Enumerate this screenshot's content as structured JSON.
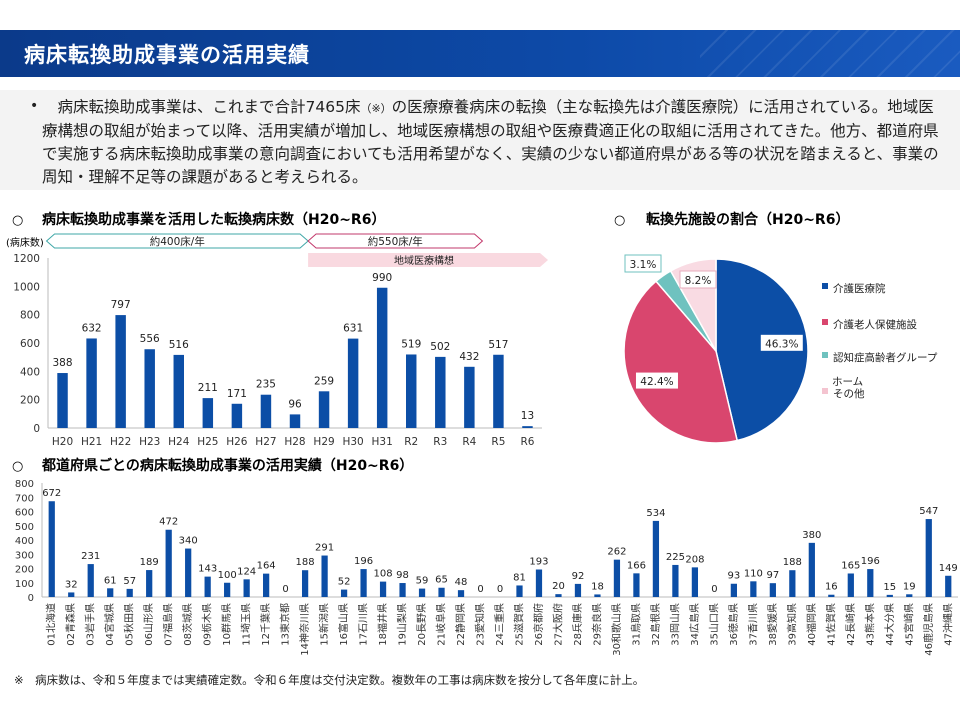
{
  "page_title": "病床転換助成事業の活用実績",
  "summary": {
    "bullet": "•",
    "text_pre": "　病床転換助成事業は、これまで合計7465床",
    "text_note": "（※）",
    "text_post": "の医療療養病床の転換（主な転換先は介護医療院）に活用されている。地域医療構想の取組が始まって以降、活用実績が増加し、地域医療構想の取組や医療費適正化の取組に活用されてきた。他方、都道府県で実施する病床転換助成事業の意向調査においても活用希望がなく、実績の少ない都道府県がある等の状況を踏まえると、事業の周知・理解不足等の課題があると考えられる。"
  },
  "footnote": "※　病床数は、令和５年度までは実績確定数。令和６年度は交付決定数。複数年の工事は病床数を按分して各年度に計上。",
  "colors": {
    "bar": "#0c4ea6",
    "title_bar": "#0b3a8a",
    "pink": "#f9d9e0",
    "cyan_arrow": "#3fa7a7",
    "magenta_arrow": "#c2386b"
  },
  "chart_data": [
    {
      "type": "bar",
      "title": "病床転換助成事業を活用した転換病床数（H20~R6）",
      "marker": "○",
      "ylabel": "(病床数)",
      "ylim": [
        0,
        1200
      ],
      "yticks": [
        0,
        200,
        400,
        600,
        800,
        1000,
        1200
      ],
      "grid": false,
      "categories": [
        "H20",
        "H21",
        "H22",
        "H23",
        "H24",
        "H25",
        "H26",
        "H27",
        "H28",
        "H29",
        "H30",
        "H31",
        "R2",
        "R3",
        "R4",
        "R5",
        "R6"
      ],
      "values": [
        388,
        632,
        797,
        556,
        516,
        211,
        171,
        235,
        96,
        259,
        631,
        990,
        519,
        502,
        432,
        517,
        13
      ],
      "annotations": [
        {
          "label": "約400床/年",
          "from": "H20",
          "to": "H28",
          "color": "#3fa7a7"
        },
        {
          "label": "約550床/年",
          "from": "H29",
          "to": "R4",
          "color": "#c2386b"
        },
        {
          "label": "地域医療構想",
          "from": "H29",
          "to": "R6",
          "color": "#f9d9e0"
        }
      ]
    },
    {
      "type": "pie",
      "title": "転換先施設の割合（H20~R6）",
      "marker": "○",
      "legend_position": "right",
      "slices": [
        {
          "name": "介護医療院",
          "value": 46.3,
          "label": "46.3%",
          "color": "#0c4ea6"
        },
        {
          "name": "介護老人保健施設",
          "value": 42.4,
          "label": "42.4%",
          "color": "#d9466e"
        },
        {
          "name": "認知症高齢者グループホーム",
          "value": 3.1,
          "label": "3.1%",
          "color": "#6fc2bf"
        },
        {
          "name": "その他",
          "value": 8.2,
          "label": "8.2%",
          "color": "#f9dbe3"
        }
      ],
      "legend": [
        {
          "text": "介護医療院"
        },
        {
          "text": "介護老人保健施設"
        },
        {
          "text": "認知症高齢者グループホーム"
        },
        {
          "text": "その他"
        }
      ],
      "legend_line3a": "認知症高齢者グループ",
      "legend_line3b": "ホーム"
    },
    {
      "type": "bar",
      "title": "都道府県ごとの病床転換助成事業の活用実績（H20~R6）",
      "marker": "○",
      "ylim": [
        0,
        800
      ],
      "yticks": [
        0,
        100,
        200,
        300,
        400,
        500,
        600,
        700,
        800
      ],
      "grid": false,
      "categories": [
        "01北海道",
        "02青森県",
        "03岩手県",
        "04宮城県",
        "05秋田県",
        "06山形県",
        "07福島県",
        "08茨城県",
        "09栃木県",
        "10群馬県",
        "11埼玉県",
        "12千葉県",
        "13東京都",
        "14神奈川県",
        "15新潟県",
        "16富山県",
        "17石川県",
        "18福井県",
        "19山梨県",
        "20長野県",
        "21岐阜県",
        "22静岡県",
        "23愛知県",
        "24三重県",
        "25滋賀県",
        "26京都府",
        "27大阪府",
        "28兵庫県",
        "29奈良県",
        "30和歌山県",
        "31鳥取県",
        "32島根県",
        "33岡山県",
        "34広島県",
        "35山口県",
        "36徳島県",
        "37香川県",
        "38愛媛県",
        "39高知県",
        "40福岡県",
        "41佐賀県",
        "42長崎県",
        "43熊本県",
        "44大分県",
        "45宮崎県",
        "46鹿児島県",
        "47沖縄県"
      ],
      "values": [
        672,
        32,
        231,
        61,
        57,
        189,
        472,
        340,
        143,
        100,
        124,
        164,
        0,
        188,
        291,
        52,
        196,
        108,
        98,
        59,
        65,
        48,
        0,
        0,
        81,
        193,
        20,
        92,
        18,
        262,
        166,
        534,
        225,
        208,
        0,
        93,
        110,
        97,
        188,
        380,
        16,
        165,
        196,
        15,
        19,
        547,
        149
      ]
    }
  ]
}
